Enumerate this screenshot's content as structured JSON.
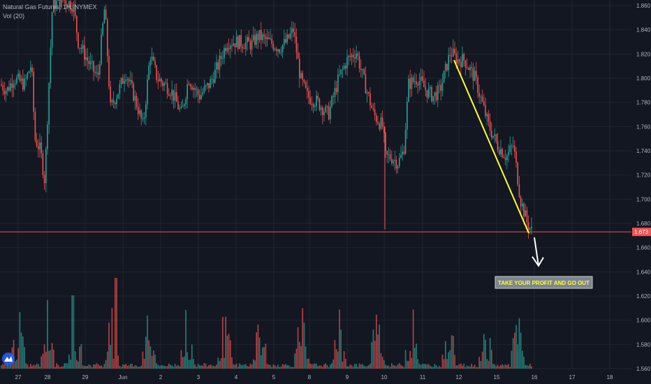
{
  "legend": {
    "title": "Natural Gas Futures, 1H, NYMEX",
    "volume": "Vol (20)"
  },
  "colors": {
    "background": "#131722",
    "grid": "#1f2430",
    "up": "#26a69a",
    "down": "#ef5350",
    "text": "#b2b5be",
    "price_line": "#ef5350",
    "trend_line": "#ffff33",
    "arrow": "#ffffff",
    "annotation_bg": "#7d8593",
    "annotation_text": "#ffff33"
  },
  "chart_data": {
    "type": "candlestick",
    "symbol": "Natural Gas Futures",
    "timeframe": "1H",
    "exchange": "NYMEX",
    "yaxis": {
      "ticks": [
        "1.860",
        "1.840",
        "1.820",
        "1.800",
        "1.780",
        "1.760",
        "1.740",
        "1.720",
        "1.700",
        "1.680",
        "1.660",
        "1.640",
        "1.620",
        "1.600",
        "1.580",
        "1.560"
      ],
      "range": [
        1.555,
        1.865
      ]
    },
    "xaxis": {
      "ticks": [
        "27",
        "28",
        "29",
        "Jun",
        "2",
        "3",
        "4",
        "5",
        "8",
        "9",
        "10",
        "11",
        "12",
        "15",
        "16",
        "17",
        "18"
      ]
    },
    "last_price": "1.673",
    "sessions": [
      {
        "label": "27",
        "close": 1.795,
        "low": 1.725,
        "high": 1.815
      },
      {
        "label": "28",
        "close": 1.715,
        "low": 1.71,
        "high": 1.86
      },
      {
        "label": "29",
        "close": 1.825,
        "low": 1.79,
        "high": 1.86
      },
      {
        "label": "Jun",
        "close": 1.79,
        "low": 1.77,
        "high": 1.86
      },
      {
        "label": "2",
        "close": 1.79,
        "low": 1.75,
        "high": 1.82
      },
      {
        "label": "3",
        "close": 1.785,
        "low": 1.76,
        "high": 1.8
      },
      {
        "label": "4",
        "close": 1.82,
        "low": 1.78,
        "high": 1.835
      },
      {
        "label": "5",
        "close": 1.83,
        "low": 1.81,
        "high": 1.84
      },
      {
        "label": "8",
        "close": 1.78,
        "low": 1.76,
        "high": 1.86
      },
      {
        "label": "9",
        "close": 1.81,
        "low": 1.765,
        "high": 1.825
      },
      {
        "label": "10",
        "close": 1.73,
        "low": 1.675,
        "high": 1.81
      },
      {
        "label": "11",
        "close": 1.79,
        "low": 1.72,
        "high": 1.81
      },
      {
        "label": "12",
        "close": 1.815,
        "low": 1.78,
        "high": 1.83
      },
      {
        "label": "15",
        "close": 1.74,
        "low": 1.72,
        "high": 1.81
      },
      {
        "label": "16",
        "close": 1.673,
        "low": 1.665,
        "high": 1.745
      }
    ],
    "volume": {
      "max_bar_level": "about 1.635 on price scale",
      "pattern": "session spikes each trading day"
    },
    "annotations": [
      {
        "type": "trend_line",
        "from": {
          "date": "12",
          "price": 1.815
        },
        "to": {
          "date": "16",
          "price": 1.672
        }
      },
      {
        "type": "arrow",
        "from": {
          "date": "16",
          "price": 1.673
        },
        "to": {
          "date": "16",
          "price": 1.645
        }
      },
      {
        "type": "callout",
        "text": "TAKE YOUR PROFIT AND GO OUT"
      }
    ]
  }
}
